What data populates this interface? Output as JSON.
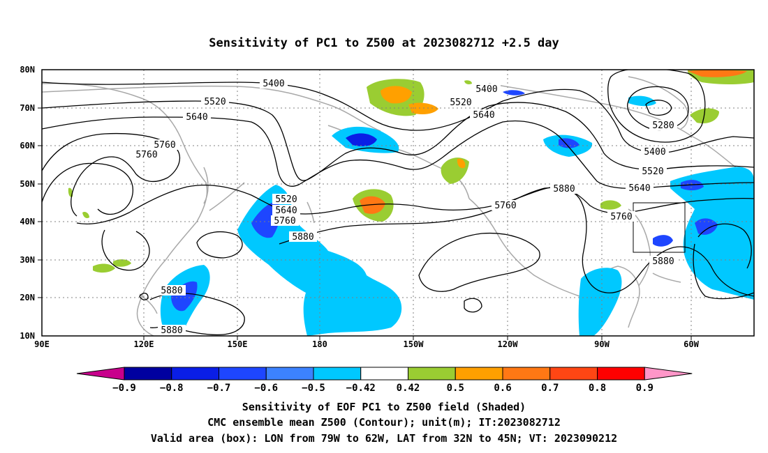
{
  "title": "Sensitivity of PC1 to Z500 at 2023082712 +2.5 day",
  "map": {
    "lon_ticks": [
      "90E",
      "120E",
      "150E",
      "180",
      "150W",
      "120W",
      "90W",
      "60W"
    ],
    "lat_ticks": [
      "80N",
      "70N",
      "60N",
      "50N",
      "40N",
      "30N",
      "20N",
      "10N"
    ],
    "lon_range": [
      "90E",
      "40W"
    ],
    "lat_range": [
      "10N",
      "80N"
    ],
    "grid": "dotted",
    "contour_labels": [
      {
        "v": "5400"
      },
      {
        "v": "5520"
      },
      {
        "v": "5640"
      },
      {
        "v": "5760"
      },
      {
        "v": "5760"
      },
      {
        "v": "5520"
      },
      {
        "v": "5640"
      },
      {
        "v": "5760"
      },
      {
        "v": "5880"
      },
      {
        "v": "5400"
      },
      {
        "v": "5520"
      },
      {
        "v": "5640"
      },
      {
        "v": "5760"
      },
      {
        "v": "5880"
      },
      {
        "v": "5280"
      },
      {
        "v": "5400"
      },
      {
        "v": "5520"
      },
      {
        "v": "5640"
      },
      {
        "v": "5760"
      },
      {
        "v": "5880"
      },
      {
        "v": "5880"
      },
      {
        "v": "5880"
      }
    ]
  },
  "colorbar": {
    "colors": [
      "#c8008c",
      "#0000a0",
      "#0a1ee6",
      "#1e46ff",
      "#3c82ff",
      "#00c8ff",
      "#ffffff",
      "#9acd32",
      "#ffa000",
      "#ff7814",
      "#ff4614",
      "#ff0000",
      "#ff96c8"
    ],
    "labels": [
      "−0.9",
      "−0.8",
      "−0.7",
      "−0.6",
      "−0.5",
      "−0.42",
      "0.42",
      "0.5",
      "0.6",
      "0.7",
      "0.8",
      "0.9"
    ]
  },
  "footer": {
    "line1": "Sensitivity of EOF PC1 to Z500 field (Shaded)",
    "line2": "CMC ensemble mean Z500 (Contour); unit(m); IT:2023082712",
    "line3": "Valid area (box): LON from 79W to 62W, LAT from 32N to 45N; VT: 2023090212"
  }
}
